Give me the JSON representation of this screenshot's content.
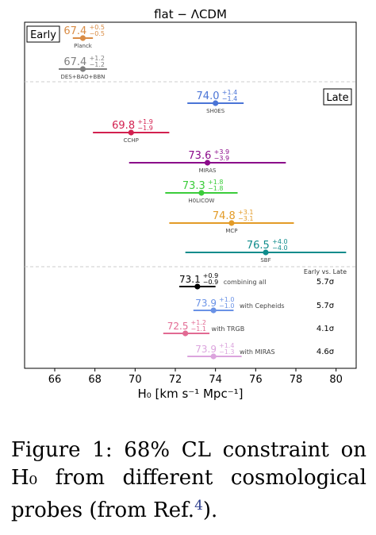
{
  "chart_data": {
    "type": "errorbar",
    "title": "flat − ΛCDM",
    "xlabel": "H₀ [km s⁻¹ Mpc⁻¹]",
    "xlim": [
      64.5,
      81
    ],
    "xticks": [
      66,
      68,
      70,
      72,
      74,
      76,
      78,
      80
    ],
    "grid": false,
    "section_labels": {
      "early": "Early",
      "late": "Late"
    },
    "early_vs_late_header": "Early vs. Late",
    "points": [
      {
        "name": "Planck",
        "value": "67.4",
        "plus": "+0.5",
        "minus": "−0.5",
        "x": 67.4,
        "lo": 0.5,
        "hi": 0.5,
        "color": "#d98c45",
        "group": "early"
      },
      {
        "name": "DES+BAO+BBN",
        "value": "67.4",
        "plus": "+1.2",
        "minus": "−1.2",
        "x": 67.4,
        "lo": 1.2,
        "hi": 1.2,
        "color": "#808080",
        "group": "early"
      },
      {
        "name": "SH0ES",
        "value": "74.0",
        "plus": "+1.4",
        "minus": "−1.4",
        "x": 74.0,
        "lo": 1.4,
        "hi": 1.4,
        "color": "#4a74d6",
        "group": "late"
      },
      {
        "name": "CCHP",
        "value": "69.8",
        "plus": "+1.9",
        "minus": "−1.9",
        "x": 69.8,
        "lo": 1.9,
        "hi": 1.9,
        "color": "#d2204f",
        "group": "late"
      },
      {
        "name": "MIRAS",
        "value": "73.6",
        "plus": "+3.9",
        "minus": "−3.9",
        "x": 73.6,
        "lo": 3.9,
        "hi": 3.9,
        "color": "#8b0a8a",
        "group": "late"
      },
      {
        "name": "H0LICOW",
        "value": "73.3",
        "plus": "+1.8",
        "minus": "−1.8",
        "x": 73.3,
        "lo": 1.8,
        "hi": 1.8,
        "color": "#3bcc3b",
        "group": "late"
      },
      {
        "name": "MCP",
        "value": "74.8",
        "plus": "+3.1",
        "minus": "−3.1",
        "x": 74.8,
        "lo": 3.1,
        "hi": 3.1,
        "color": "#e39b27",
        "group": "late"
      },
      {
        "name": "SBF",
        "value": "76.5",
        "plus": "+4.0",
        "minus": "−4.0",
        "x": 76.5,
        "lo": 4.0,
        "hi": 4.0,
        "color": "#0f8c8c",
        "group": "late"
      },
      {
        "name": "combining all",
        "value": "73.1",
        "plus": "+0.9",
        "minus": "−0.9",
        "x": 73.1,
        "lo": 0.9,
        "hi": 0.9,
        "color": "#000000",
        "group": "combined",
        "sigma": "5.7σ"
      },
      {
        "name": "with Cepheids",
        "value": "73.9",
        "plus": "+1.0",
        "minus": "−1.0",
        "x": 73.9,
        "lo": 1.0,
        "hi": 1.0,
        "color": "#6a92e6",
        "group": "combined",
        "sigma": "5.7σ"
      },
      {
        "name": "with TRGB",
        "value": "72.5",
        "plus": "+1.2",
        "minus": "−1.1",
        "x": 72.5,
        "lo": 1.1,
        "hi": 1.2,
        "color": "#e26a93",
        "group": "combined",
        "sigma": "4.1σ"
      },
      {
        "name": "with MIRAS",
        "value": "73.9",
        "plus": "+1.4",
        "minus": "−1.3",
        "x": 73.9,
        "lo": 1.3,
        "hi": 1.4,
        "color": "#dba4dd",
        "group": "combined",
        "sigma": "4.6σ"
      }
    ]
  },
  "caption": {
    "text": "Figure 1:  68% CL constraint on H₀ from different cosmological probes (from Ref.",
    "ref": "4",
    "tail": ")."
  }
}
